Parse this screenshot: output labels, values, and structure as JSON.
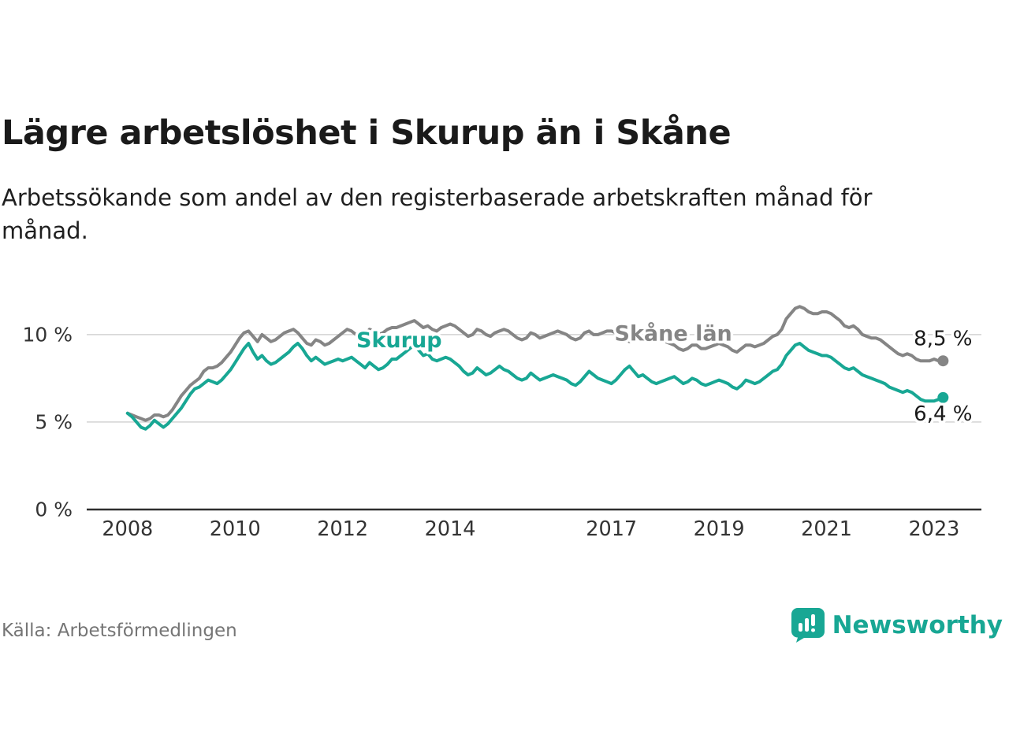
{
  "page": {
    "title": "Lägre arbetslöshet i Skurup än i Skåne",
    "subtitle": "Arbetssökande som andel av den registerbaserade arbetskraften månad för månad.",
    "source": "Källa: Arbetsförmedlingen",
    "brand": "Newsworthy"
  },
  "colors": {
    "teal": "#18a794",
    "gray_series": "#858585",
    "gridline": "#d2d2d2",
    "axis": "#2e2e2e",
    "tick_label": "#333333",
    "value_label": "#1a1a1a"
  },
  "chart_data": {
    "type": "line",
    "title": "Lägre arbetslöshet i Skurup än i Skåne",
    "subtitle": "Arbetssökande som andel av den registerbaserade arbetskraften månad för månad.",
    "x_start_year": 2008,
    "x_step_months": 1,
    "xlim": [
      2007.24,
      2023.88
    ],
    "ylim": [
      0,
      12.02
    ],
    "grid": "horizontal-only",
    "legend_position": "inline-labels",
    "yticks": [
      {
        "value": 0,
        "label": "0 %"
      },
      {
        "value": 5,
        "label": "5 %"
      },
      {
        "value": 10,
        "label": "10 %"
      }
    ],
    "xticks": [
      {
        "value": 2008,
        "label": "2008"
      },
      {
        "value": 2010,
        "label": "2010"
      },
      {
        "value": 2012,
        "label": "2012"
      },
      {
        "value": 2014,
        "label": "2014"
      },
      {
        "value": 2017,
        "label": "2017"
      },
      {
        "value": 2019,
        "label": "2019"
      },
      {
        "value": 2021,
        "label": "2021"
      },
      {
        "value": 2023,
        "label": "2023"
      }
    ],
    "series": [
      {
        "id": "skane",
        "name": "Skåne län",
        "color": "#858585",
        "end_label": "8,5 %",
        "end_value": 8.5,
        "end_label_y": 9.75,
        "inline_label": {
          "x": 2018.15,
          "y": 10.05
        },
        "values": [
          5.5,
          5.4,
          5.3,
          5.2,
          5.1,
          5.2,
          5.4,
          5.4,
          5.3,
          5.4,
          5.7,
          6.1,
          6.5,
          6.8,
          7.1,
          7.3,
          7.5,
          7.9,
          8.1,
          8.1,
          8.2,
          8.4,
          8.7,
          9.0,
          9.4,
          9.8,
          10.1,
          10.2,
          9.9,
          9.6,
          10.0,
          9.8,
          9.6,
          9.7,
          9.9,
          10.1,
          10.2,
          10.3,
          10.1,
          9.8,
          9.5,
          9.4,
          9.7,
          9.6,
          9.4,
          9.5,
          9.7,
          9.9,
          10.1,
          10.3,
          10.2,
          10.0,
          9.9,
          10.0,
          10.3,
          10.2,
          10.0,
          10.1,
          10.3,
          10.4,
          10.4,
          10.5,
          10.6,
          10.7,
          10.8,
          10.6,
          10.4,
          10.5,
          10.3,
          10.2,
          10.4,
          10.5,
          10.6,
          10.5,
          10.3,
          10.1,
          9.9,
          10.0,
          10.3,
          10.2,
          10.0,
          9.9,
          10.1,
          10.2,
          10.3,
          10.2,
          10.0,
          9.8,
          9.7,
          9.8,
          10.1,
          10.0,
          9.8,
          9.9,
          10.0,
          10.1,
          10.2,
          10.1,
          10.0,
          9.8,
          9.7,
          9.8,
          10.1,
          10.2,
          10.0,
          10.0,
          10.1,
          10.2,
          10.2,
          10.1,
          9.9,
          9.7,
          9.6,
          9.7,
          10.0,
          9.9,
          9.7,
          9.6,
          9.6,
          9.7,
          9.6,
          9.5,
          9.4,
          9.2,
          9.1,
          9.2,
          9.4,
          9.4,
          9.2,
          9.2,
          9.3,
          9.4,
          9.5,
          9.4,
          9.3,
          9.1,
          9.0,
          9.2,
          9.4,
          9.4,
          9.3,
          9.4,
          9.5,
          9.7,
          9.9,
          10.0,
          10.3,
          10.9,
          11.2,
          11.5,
          11.6,
          11.5,
          11.3,
          11.2,
          11.2,
          11.3,
          11.3,
          11.2,
          11.0,
          10.8,
          10.5,
          10.4,
          10.5,
          10.3,
          10.0,
          9.9,
          9.8,
          9.8,
          9.7,
          9.5,
          9.3,
          9.1,
          8.9,
          8.8,
          8.9,
          8.8,
          8.6,
          8.5,
          8.5,
          8.5,
          8.6,
          8.5,
          8.5
        ]
      },
      {
        "id": "skurup",
        "name": "Skurup",
        "color": "#18a794",
        "end_label": "6,4 %",
        "end_value": 6.4,
        "end_label_y": 5.45,
        "inline_label": {
          "x": 2013.05,
          "y": 9.65
        },
        "values": [
          5.5,
          5.3,
          5.0,
          4.7,
          4.6,
          4.8,
          5.1,
          4.9,
          4.7,
          4.9,
          5.2,
          5.5,
          5.8,
          6.2,
          6.6,
          6.9,
          7.0,
          7.2,
          7.4,
          7.3,
          7.2,
          7.4,
          7.7,
          8.0,
          8.4,
          8.8,
          9.2,
          9.5,
          9.0,
          8.6,
          8.8,
          8.5,
          8.3,
          8.4,
          8.6,
          8.8,
          9.0,
          9.3,
          9.5,
          9.2,
          8.8,
          8.5,
          8.7,
          8.5,
          8.3,
          8.4,
          8.5,
          8.6,
          8.5,
          8.6,
          8.7,
          8.5,
          8.3,
          8.1,
          8.4,
          8.2,
          8.0,
          8.1,
          8.3,
          8.6,
          8.6,
          8.8,
          9.0,
          9.2,
          9.4,
          9.1,
          8.8,
          8.9,
          8.6,
          8.5,
          8.6,
          8.7,
          8.6,
          8.4,
          8.2,
          7.9,
          7.7,
          7.8,
          8.1,
          7.9,
          7.7,
          7.8,
          8.0,
          8.2,
          8.0,
          7.9,
          7.7,
          7.5,
          7.4,
          7.5,
          7.8,
          7.6,
          7.4,
          7.5,
          7.6,
          7.7,
          7.6,
          7.5,
          7.4,
          7.2,
          7.1,
          7.3,
          7.6,
          7.9,
          7.7,
          7.5,
          7.4,
          7.3,
          7.2,
          7.4,
          7.7,
          8.0,
          8.2,
          7.9,
          7.6,
          7.7,
          7.5,
          7.3,
          7.2,
          7.3,
          7.4,
          7.5,
          7.6,
          7.4,
          7.2,
          7.3,
          7.5,
          7.4,
          7.2,
          7.1,
          7.2,
          7.3,
          7.4,
          7.3,
          7.2,
          7.0,
          6.9,
          7.1,
          7.4,
          7.3,
          7.2,
          7.3,
          7.5,
          7.7,
          7.9,
          8.0,
          8.3,
          8.8,
          9.1,
          9.4,
          9.5,
          9.3,
          9.1,
          9.0,
          8.9,
          8.8,
          8.8,
          8.7,
          8.5,
          8.3,
          8.1,
          8.0,
          8.1,
          7.9,
          7.7,
          7.6,
          7.5,
          7.4,
          7.3,
          7.2,
          7.0,
          6.9,
          6.8,
          6.7,
          6.8,
          6.7,
          6.5,
          6.3,
          6.2,
          6.2,
          6.2,
          6.3,
          6.4
        ]
      }
    ]
  }
}
